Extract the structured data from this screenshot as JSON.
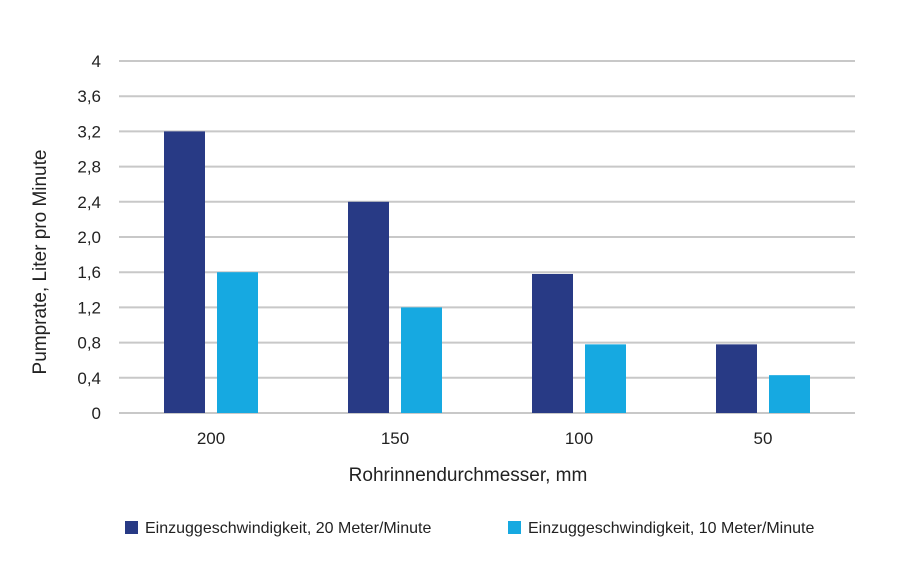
{
  "chart_data": {
    "type": "bar",
    "title": "",
    "xlabel": "Rohrinnendurchmesser, mm",
    "ylabel": "Pumprate, Liter pro Minute",
    "categories": [
      "200",
      "150",
      "100",
      "50"
    ],
    "series": [
      {
        "name": "Einzuggeschwindigkeit, 20 Meter/Minute",
        "values": [
          3.2,
          2.4,
          1.58,
          0.78
        ],
        "color": "#283a85"
      },
      {
        "name": "Einzuggeschwindigkeit, 10 Meter/Minute",
        "values": [
          1.6,
          1.2,
          0.78,
          0.43
        ],
        "color": "#16a9e1"
      }
    ],
    "ylim": [
      0,
      4
    ],
    "yticks": [
      "0",
      "0,4",
      "0,8",
      "1,2",
      "1,6",
      "2,0",
      "2,4",
      "2,8",
      "3,2",
      "3,6",
      "4"
    ],
    "grid": true,
    "legend_position": "bottom"
  }
}
